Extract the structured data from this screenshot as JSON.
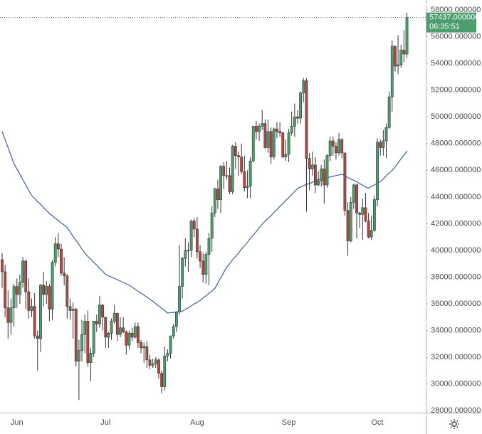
{
  "chart_data": {
    "type": "candlestick",
    "up_color": "#4c9e6f",
    "down_color": "#b8453e",
    "grid": false,
    "last_label": "57437.000000",
    "countdown": "06:35:51",
    "ylim": [
      27850,
      58750
    ],
    "yticks": [
      {
        "value": 28000,
        "label": "28000.000000"
      },
      {
        "value": 30000,
        "label": "30000.000000"
      },
      {
        "value": 32000,
        "label": "32000.000000"
      },
      {
        "value": 34000,
        "label": "34000.000000"
      },
      {
        "value": 36000,
        "label": "36000.000000"
      },
      {
        "value": 38000,
        "label": "38000.000000"
      },
      {
        "value": 40000,
        "label": "40000.000000"
      },
      {
        "value": 42000,
        "label": "42000.000000"
      },
      {
        "value": 44000,
        "label": "44000.000000"
      },
      {
        "value": 46000,
        "label": "46000.000000"
      },
      {
        "value": 48000,
        "label": "48000.000000"
      },
      {
        "value": 50000,
        "label": "50000.000000"
      },
      {
        "value": 52000,
        "label": "52000.000000"
      },
      {
        "value": 54000,
        "label": "54000.000000"
      },
      {
        "value": 56000,
        "label": "56000.000000"
      },
      {
        "value": 58000,
        "label": "58000.000000"
      }
    ],
    "categories": [
      null,
      null,
      null,
      null,
      null,
      "Jun",
      null,
      null,
      null,
      null,
      null,
      null,
      null,
      null,
      null,
      null,
      null,
      null,
      null,
      null,
      null,
      null,
      null,
      null,
      null,
      null,
      null,
      null,
      null,
      null,
      null,
      null,
      null,
      null,
      null,
      "Jul",
      null,
      null,
      null,
      null,
      null,
      null,
      null,
      null,
      null,
      null,
      null,
      null,
      null,
      null,
      null,
      null,
      null,
      null,
      null,
      null,
      null,
      null,
      null,
      null,
      null,
      null,
      null,
      null,
      null,
      null,
      "Aug",
      null,
      null,
      null,
      null,
      null,
      null,
      null,
      null,
      null,
      null,
      null,
      null,
      null,
      null,
      null,
      null,
      null,
      null,
      null,
      null,
      null,
      null,
      null,
      null,
      null,
      null,
      null,
      null,
      null,
      null,
      "Sep",
      null,
      null,
      null,
      null,
      null,
      null,
      null,
      null,
      null,
      null,
      null,
      null,
      null,
      null,
      null,
      null,
      null,
      null,
      null,
      null,
      null,
      null,
      null,
      null,
      null,
      null,
      null,
      null,
      null,
      "Oct",
      null,
      null,
      null,
      null,
      null,
      null,
      null,
      null,
      null,
      null
    ],
    "candles": [
      [
        39300,
        39800,
        37200,
        38400
      ],
      [
        38400,
        38900,
        35000,
        35700
      ],
      [
        35700,
        37000,
        33400,
        34600
      ],
      [
        34600,
        36400,
        33700,
        35700
      ],
      [
        35700,
        37500,
        34300,
        37300
      ],
      [
        37300,
        37900,
        35700,
        36700
      ],
      [
        36700,
        38200,
        36000,
        37600
      ],
      [
        37600,
        39500,
        37200,
        39200
      ],
      [
        39200,
        39300,
        35600,
        36900
      ],
      [
        36900,
        37900,
        34900,
        35500
      ],
      [
        35500,
        36400,
        35000,
        35800
      ],
      [
        35800,
        36800,
        33400,
        33600
      ],
      [
        33600,
        34000,
        31000,
        33400
      ],
      [
        33400,
        37500,
        32400,
        37400
      ],
      [
        37400,
        38400,
        35800,
        36700
      ],
      [
        36700,
        37700,
        36000,
        37300
      ],
      [
        37300,
        37500,
        34700,
        35600
      ],
      [
        35600,
        39300,
        34800,
        39100
      ],
      [
        39100,
        41000,
        38800,
        40500
      ],
      [
        40500,
        41300,
        39500,
        40100
      ],
      [
        40100,
        40500,
        38100,
        38300
      ],
      [
        38300,
        39500,
        37400,
        38100
      ],
      [
        38100,
        38200,
        34900,
        35800
      ],
      [
        35800,
        36400,
        34800,
        35500
      ],
      [
        35500,
        36100,
        33400,
        35600
      ],
      [
        35600,
        35700,
        31300,
        31700
      ],
      [
        31700,
        33300,
        28800,
        32500
      ],
      [
        32500,
        34800,
        31700,
        33700
      ],
      [
        33700,
        35200,
        32300,
        34700
      ],
      [
        34700,
        35500,
        31300,
        31600
      ],
      [
        31600,
        32700,
        30200,
        32300
      ],
      [
        32300,
        34700,
        32000,
        34700
      ],
      [
        34700,
        35200,
        33900,
        34500
      ],
      [
        34500,
        36600,
        34200,
        35900
      ],
      [
        35900,
        36000,
        34000,
        35000
      ],
      [
        35000,
        35000,
        32700,
        33500
      ],
      [
        33500,
        33900,
        32700,
        33800
      ],
      [
        33800,
        34900,
        33300,
        34700
      ],
      [
        34700,
        35900,
        34500,
        35300
      ],
      [
        35300,
        35300,
        33200,
        33700
      ],
      [
        33700,
        35000,
        33500,
        34200
      ],
      [
        34200,
        35000,
        33800,
        33900
      ],
      [
        33900,
        34000,
        32200,
        32900
      ],
      [
        32900,
        34000,
        32600,
        33800
      ],
      [
        33800,
        34200,
        33200,
        33500
      ],
      [
        33500,
        34600,
        33400,
        34300
      ],
      [
        34300,
        34600,
        32700,
        33100
      ],
      [
        33100,
        33300,
        32300,
        32700
      ],
      [
        32700,
        33100,
        31600,
        32800
      ],
      [
        32800,
        33200,
        31200,
        31800
      ],
      [
        31800,
        32200,
        31100,
        31400
      ],
      [
        31400,
        31900,
        31200,
        31500
      ],
      [
        31500,
        32000,
        31200,
        31800
      ],
      [
        31800,
        31900,
        30400,
        30800
      ],
      [
        30800,
        31000,
        29300,
        29800
      ],
      [
        29800,
        32800,
        29500,
        32100
      ],
      [
        32100,
        32600,
        31700,
        32300
      ],
      [
        32300,
        33600,
        31900,
        33600
      ],
      [
        33600,
        34500,
        33400,
        34300
      ],
      [
        34300,
        35400,
        33900,
        35400
      ],
      [
        35400,
        40400,
        35200,
        37300
      ],
      [
        37300,
        39500,
        36400,
        39400
      ],
      [
        39400,
        40900,
        38800,
        40000
      ],
      [
        40000,
        40600,
        38400,
        40000
      ],
      [
        40000,
        42300,
        39500,
        42200
      ],
      [
        42200,
        42400,
        41000,
        41600
      ],
      [
        41600,
        42500,
        39400,
        39900
      ],
      [
        39900,
        40400,
        38700,
        39200
      ],
      [
        39200,
        39800,
        37600,
        38200
      ],
      [
        38200,
        39900,
        37500,
        39700
      ],
      [
        39700,
        41300,
        37400,
        40900
      ],
      [
        40900,
        43300,
        39900,
        42800
      ],
      [
        42800,
        44700,
        42500,
        44600
      ],
      [
        44600,
        45300,
        43100,
        43800
      ],
      [
        43800,
        46400,
        42800,
        46300
      ],
      [
        46300,
        46600,
        44600,
        45600
      ],
      [
        45600,
        46700,
        45300,
        45600
      ],
      [
        45600,
        46200,
        44200,
        44400
      ],
      [
        44400,
        47900,
        44200,
        47800
      ],
      [
        47800,
        48100,
        46100,
        47100
      ],
      [
        47100,
        47400,
        45600,
        47000
      ],
      [
        47000,
        48000,
        45700,
        45900
      ],
      [
        45900,
        47100,
        44400,
        44700
      ],
      [
        44700,
        46000,
        43900,
        44800
      ],
      [
        44800,
        47000,
        43900,
        46700
      ],
      [
        46700,
        49300,
        46600,
        49300
      ],
      [
        49300,
        49700,
        48300,
        48900
      ],
      [
        48900,
        49500,
        48200,
        49300
      ],
      [
        49300,
        50500,
        49000,
        49500
      ],
      [
        49500,
        49800,
        47600,
        47700
      ],
      [
        47700,
        49800,
        47300,
        48900
      ],
      [
        48900,
        49200,
        46500,
        47000
      ],
      [
        47000,
        49200,
        46800,
        49100
      ],
      [
        49100,
        49600,
        48400,
        48900
      ],
      [
        48900,
        49600,
        48500,
        48800
      ],
      [
        48800,
        48900,
        46900,
        47000
      ],
      [
        47000,
        48300,
        46700,
        47200
      ],
      [
        47200,
        49100,
        46600,
        48800
      ],
      [
        48800,
        50400,
        48600,
        49300
      ],
      [
        49300,
        51000,
        48500,
        50000
      ],
      [
        50000,
        50500,
        49500,
        49900
      ],
      [
        49900,
        51900,
        49500,
        51800
      ],
      [
        51800,
        52900,
        51100,
        52700
      ],
      [
        52700,
        52900,
        42900,
        46900
      ],
      [
        46900,
        47300,
        44500,
        46100
      ],
      [
        46100,
        47400,
        45600,
        46400
      ],
      [
        46400,
        47000,
        44300,
        44900
      ],
      [
        44900,
        45900,
        44800,
        45200
      ],
      [
        45200,
        46400,
        44800,
        46100
      ],
      [
        46100,
        46800,
        43500,
        44900
      ],
      [
        44900,
        47200,
        44700,
        47100
      ],
      [
        47100,
        48500,
        46700,
        48200
      ],
      [
        48200,
        48500,
        47100,
        47800
      ],
      [
        47800,
        48100,
        46800,
        47300
      ],
      [
        47300,
        48800,
        47100,
        48300
      ],
      [
        48300,
        48400,
        46900,
        47300
      ],
      [
        47300,
        47300,
        42600,
        43000
      ],
      [
        43000,
        43600,
        39600,
        40700
      ],
      [
        40700,
        44000,
        40600,
        43600
      ],
      [
        43600,
        45000,
        43100,
        44900
      ],
      [
        44900,
        45000,
        40900,
        42800
      ],
      [
        42800,
        42900,
        41700,
        42700
      ],
      [
        42700,
        43900,
        40800,
        43200
      ],
      [
        43200,
        44300,
        42100,
        42200
      ],
      [
        42200,
        42800,
        40900,
        41000
      ],
      [
        41000,
        42600,
        40800,
        41500
      ],
      [
        41500,
        44100,
        41400,
        43800
      ],
      [
        43800,
        48400,
        43300,
        48100
      ],
      [
        48100,
        48300,
        47100,
        47700
      ],
      [
        47700,
        49000,
        47100,
        48200
      ],
      [
        48200,
        49500,
        46900,
        49200
      ],
      [
        49200,
        51900,
        49100,
        51500
      ],
      [
        51500,
        55700,
        50400,
        55300
      ],
      [
        55300,
        55300,
        53400,
        53800
      ],
      [
        53800,
        56100,
        53200,
        53900
      ],
      [
        53900,
        55400,
        53700,
        55000
      ],
      [
        55000,
        56500,
        54100,
        54700
      ],
      [
        54700,
        57800,
        54400,
        57437
      ]
    ],
    "ma": {
      "color": "#3f5f9e",
      "values": [
        48900,
        48300,
        47700,
        47100,
        46500,
        46100,
        45700,
        45300,
        44900,
        44500,
        44100,
        43900,
        43650,
        43450,
        43200,
        43000,
        42750,
        42600,
        42400,
        42250,
        42050,
        41900,
        41700,
        41400,
        41050,
        40750,
        40450,
        40100,
        39800,
        39550,
        39350,
        39100,
        38900,
        38650,
        38450,
        38200,
        38100,
        38000,
        37900,
        37800,
        37700,
        37600,
        37500,
        37400,
        37250,
        37100,
        36950,
        36800,
        36650,
        36500,
        36350,
        36200,
        36000,
        35850,
        35650,
        35500,
        35300,
        35350,
        35350,
        35400,
        35400,
        35450,
        35600,
        35700,
        35850,
        36000,
        36100,
        36250,
        36450,
        36600,
        36800,
        36950,
        37150,
        37550,
        37950,
        38350,
        38750,
        39000,
        39300,
        39550,
        39800,
        40100,
        40350,
        40600,
        40900,
        41150,
        41400,
        41700,
        41950,
        42200,
        42400,
        42600,
        42850,
        43050,
        43300,
        43500,
        43750,
        43950,
        44200,
        44400,
        44650,
        44750,
        44850,
        44950,
        45000,
        45100,
        45200,
        45300,
        45350,
        45400,
        45450,
        45500,
        45550,
        45600,
        45650,
        45700,
        45600,
        45450,
        45350,
        45250,
        45150,
        45000,
        44900,
        44750,
        44650,
        44800,
        44900,
        45050,
        45150,
        45350,
        45600,
        45800,
        46000,
        46250,
        46550,
        46850,
        47150,
        47450
      ]
    }
  }
}
